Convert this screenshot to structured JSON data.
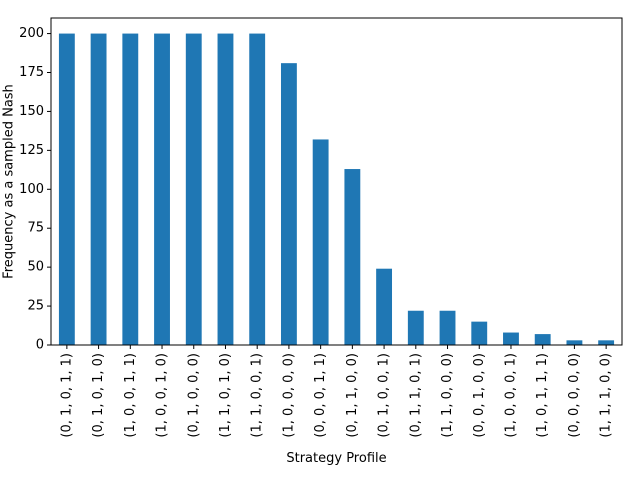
{
  "chart_data": {
    "type": "bar",
    "xlabel": "Strategy Profile",
    "ylabel": "Frequency as a sampled Nash",
    "ylim": [
      0,
      210
    ],
    "yticks": [
      0,
      25,
      50,
      75,
      100,
      125,
      150,
      175,
      200
    ],
    "bar_color": "#1f77b4",
    "categories": [
      "(0, 1, 0, 1, 1)",
      "(0, 1, 0, 1, 0)",
      "(1, 0, 0, 1, 1)",
      "(1, 0, 0, 1, 0)",
      "(0, 1, 0, 0, 0)",
      "(1, 1, 0, 1, 0)",
      "(1, 1, 0, 0, 1)",
      "(1, 0, 0, 0, 0)",
      "(0, 0, 0, 1, 1)",
      "(0, 1, 1, 0, 0)",
      "(0, 1, 0, 0, 1)",
      "(0, 1, 1, 0, 1)",
      "(1, 1, 0, 0, 0)",
      "(0, 0, 1, 0, 0)",
      "(1, 0, 0, 0, 1)",
      "(1, 0, 1, 1, 1)",
      "(0, 0, 0, 0, 0)",
      "(1, 1, 1, 0, 0)"
    ],
    "values": [
      200,
      200,
      200,
      200,
      200,
      200,
      200,
      181,
      132,
      113,
      49,
      22,
      22,
      15,
      8,
      7,
      3,
      3
    ]
  }
}
